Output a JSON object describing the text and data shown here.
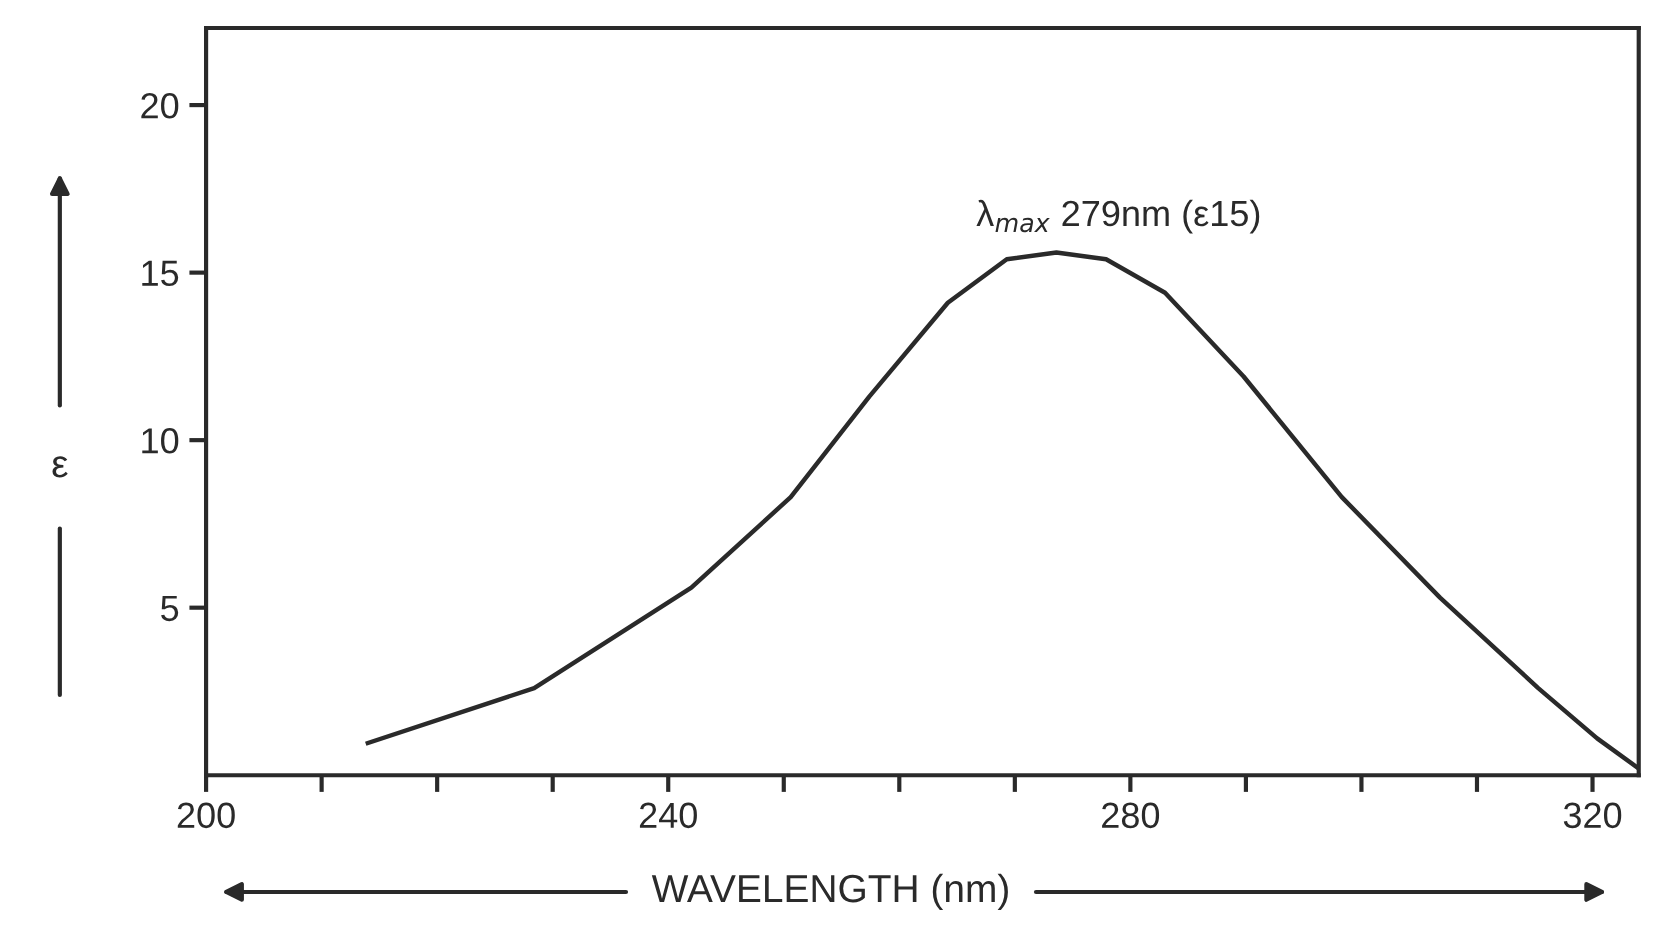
{
  "chart_data": {
    "type": "line",
    "xlabel": "WAVELENGTH (nm)",
    "ylabel": "ε",
    "series": [
      {
        "color": "#2a2a2a",
        "x": [
          214,
          228.4,
          242,
          250.6,
          257.4,
          264.2,
          269.3,
          273.6,
          277.9,
          283,
          289.8,
          298.3,
          306.8,
          315.3,
          320.4,
          324
        ],
        "values": [
          0.96,
          2.6,
          5.6,
          8.3,
          11.3,
          14.1,
          15.4,
          15.6,
          15.4,
          14.4,
          11.9,
          8.3,
          5.3,
          2.6,
          1.1,
          0.2
        ]
      }
    ],
    "annotations": [
      {
        "text": "λ$_{max}$ 279nm (ε15)",
        "x": 279,
        "y": 15
      }
    ],
    "xlim": [
      200,
      324
    ],
    "ylim": [
      0,
      22.3
    ],
    "xticks": [
      200,
      {
        "value": 210,
        "label": null
      },
      {
        "value": 220,
        "label": null
      },
      {
        "value": 230,
        "label": null
      },
      240,
      {
        "value": 250,
        "label": null
      },
      {
        "value": 260,
        "label": null
      },
      {
        "value": 270,
        "label": null
      },
      280,
      {
        "value": 290,
        "label": null
      },
      {
        "value": 300,
        "label": null
      },
      {
        "value": 310,
        "label": null
      },
      320
    ],
    "yticks": [
      5,
      10,
      15,
      20
    ],
    "grid": false,
    "marker": "none",
    "line_style": "solid"
  }
}
